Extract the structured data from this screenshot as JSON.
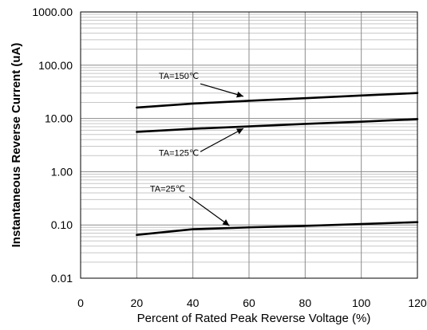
{
  "chart_data": {
    "type": "line",
    "xlabel": "Percent of  Rated Peak Reverse Voltage (%)",
    "ylabel": "Instantaneous Reverse Current (uA)",
    "xlim": [
      0,
      120
    ],
    "ylim": [
      0.01,
      1000
    ],
    "y_scale": "log",
    "grid": true,
    "x_ticks": [
      "0",
      "20",
      "40",
      "60",
      "80",
      "100",
      "120"
    ],
    "y_ticks": [
      "0.01",
      "0.10",
      "1.00",
      "10.00",
      "100.00",
      "1000.00"
    ],
    "series": [
      {
        "name": "TA=150℃",
        "x": [
          20,
          40,
          60,
          80,
          100,
          120
        ],
        "y": [
          16,
          19,
          21.5,
          24,
          27,
          30
        ]
      },
      {
        "name": "TA=125℃",
        "x": [
          20,
          40,
          60,
          80,
          100,
          120
        ],
        "y": [
          5.6,
          6.4,
          7.1,
          7.9,
          8.7,
          9.7
        ]
      },
      {
        "name": "TA=25℃",
        "x": [
          20,
          40,
          60,
          80,
          100,
          120
        ],
        "y": [
          0.065,
          0.083,
          0.09,
          0.096,
          0.104,
          0.113
        ]
      }
    ],
    "annotations": [
      {
        "text": "TA=150℃",
        "label_x": 35,
        "label_y": 55,
        "arrow_tip_x": 58,
        "arrow_tip_y": 26
      },
      {
        "text": "TA=125℃",
        "label_x": 35,
        "label_y": 2,
        "arrow_tip_x": 58,
        "arrow_tip_y": 6.5
      },
      {
        "text": "TA=25℃",
        "label_x": 31,
        "label_y": 0.42,
        "arrow_tip_x": 53,
        "arrow_tip_y": 0.097
      }
    ]
  }
}
